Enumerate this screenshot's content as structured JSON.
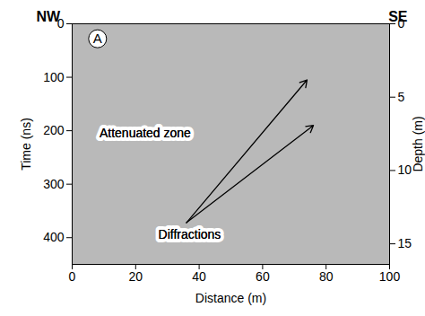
{
  "chart_data": {
    "type": "radargram",
    "x_label": "Distance (m)",
    "y_label": "Time (ns)",
    "y2_label": "Depth (m)",
    "xlim": [
      0,
      100
    ],
    "xticks": [
      0,
      20,
      40,
      60,
      80,
      100
    ],
    "ylim": [
      0,
      450
    ],
    "yticks": [
      0,
      100,
      200,
      300,
      400
    ],
    "y2lim": [
      0,
      16.4
    ],
    "y2ticks": [
      0,
      5,
      10,
      15
    ],
    "direction_labels": [
      "NW",
      "SE"
    ],
    "panel_label": {
      "text": "A",
      "x": 8,
      "y": 28
    },
    "annotations": [
      {
        "text": "Attenuated zone",
        "x": 23,
        "y": 205
      },
      {
        "text": "Diffractions",
        "x": 37,
        "y": 395,
        "arrow_from": {
          "x": 36,
          "y": 372
        },
        "arrows": [
          {
            "x": 74,
            "y": 105
          },
          {
            "x": 76,
            "y": 190
          }
        ]
      }
    ]
  }
}
